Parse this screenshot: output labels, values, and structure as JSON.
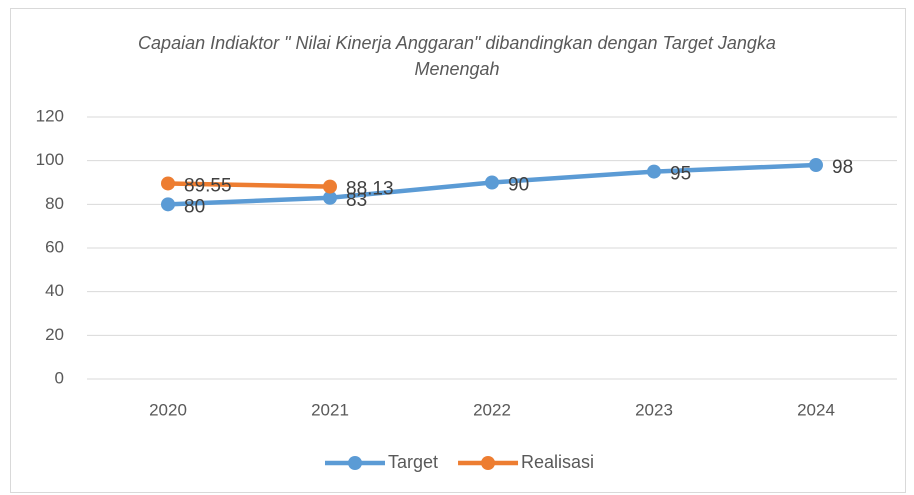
{
  "chart_data": {
    "type": "line",
    "title": "Capaian Indiaktor \" Nilai Kinerja Anggaran\" dibandingkan dengan Target Jangka Menengah",
    "categories": [
      "2020",
      "2021",
      "2022",
      "2023",
      "2024"
    ],
    "series": [
      {
        "name": "Target",
        "color": "#5b9bd5",
        "values": [
          80,
          83,
          90,
          95,
          98
        ]
      },
      {
        "name": "Realisasi",
        "color": "#ed7d31",
        "values": [
          89.55,
          88.13,
          null,
          null,
          null
        ]
      }
    ],
    "ylim": [
      0,
      120
    ],
    "yticks": [
      0,
      20,
      40,
      60,
      80,
      100,
      120
    ],
    "grid": true,
    "legend": "bottom"
  }
}
